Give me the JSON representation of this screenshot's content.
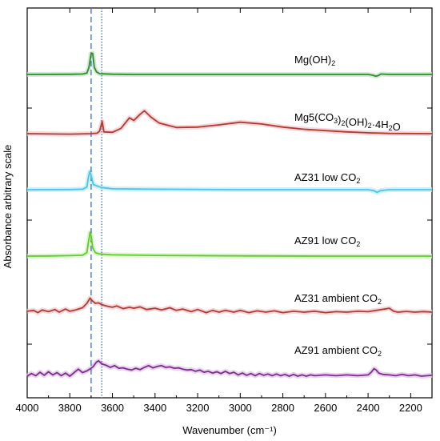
{
  "chart_data": {
    "type": "line",
    "xlabel": "Wavenumber (cm⁻¹)",
    "ylabel": "Absorbance arbitrary scale",
    "xlim": [
      4000,
      2100
    ],
    "x_ticks": [
      4000,
      3800,
      3600,
      3400,
      3200,
      3000,
      2800,
      2600,
      2400,
      2200
    ],
    "x_tick_labels": [
      "4000",
      "3800",
      "3600",
      "3400",
      "3200",
      "3000",
      "2800",
      "2600",
      "2400",
      "2200"
    ],
    "reference_lines": [
      {
        "x": 3700,
        "style": "dashed",
        "color": "#2f6fd6"
      },
      {
        "x": 3650,
        "style": "dotted",
        "color": "#2f6fd6"
      }
    ],
    "series": [
      {
        "label_parts": [
          [
            "Mg(OH)",
            "n"
          ],
          [
            "2",
            "sub"
          ]
        ],
        "color": "#2e8b2e",
        "band_color": "#c6e2c6",
        "label_x": 3290,
        "label_y": 1.35,
        "points": [
          [
            4000,
            0
          ],
          [
            3800,
            0.02
          ],
          [
            3740,
            0.05
          ],
          [
            3720,
            0.15
          ],
          [
            3710,
            0.8
          ],
          [
            3700,
            2.35
          ],
          [
            3693,
            2.4
          ],
          [
            3685,
            0.8
          ],
          [
            3675,
            0.3
          ],
          [
            3660,
            0.08
          ],
          [
            3600,
            0.03
          ],
          [
            3500,
            0
          ],
          [
            3200,
            0
          ],
          [
            2800,
            0
          ],
          [
            2400,
            0
          ],
          [
            2380,
            -0.08
          ],
          [
            2362,
            -0.2
          ],
          [
            2350,
            -0.1
          ],
          [
            2340,
            0.05
          ],
          [
            2300,
            0
          ],
          [
            2100,
            0
          ]
        ]
      },
      {
        "label_parts": [
          [
            "Mg5(CO",
            "n"
          ],
          [
            "3",
            "sub"
          ],
          [
            ")",
            "n"
          ],
          [
            "2",
            "sub"
          ],
          [
            "(OH)",
            "n"
          ],
          [
            "2",
            "sub"
          ],
          [
            "·4H",
            "n"
          ],
          [
            "2",
            "sub"
          ],
          [
            "O",
            "n"
          ]
        ],
        "color": "#b03a2e",
        "band_color": "#f2c9d0",
        "label_x": 3290,
        "label_y": 1.65,
        "points": [
          [
            4000,
            0
          ],
          [
            3800,
            -0.05
          ],
          [
            3700,
            0
          ],
          [
            3672,
            0.05
          ],
          [
            3660,
            0.3
          ],
          [
            3648,
            1.4
          ],
          [
            3640,
            0.2
          ],
          [
            3600,
            0.15
          ],
          [
            3560,
            0.6
          ],
          [
            3520,
            1.8
          ],
          [
            3500,
            1.5
          ],
          [
            3470,
            2.2
          ],
          [
            3450,
            2.6
          ],
          [
            3420,
            1.9
          ],
          [
            3380,
            1.2
          ],
          [
            3300,
            0.7
          ],
          [
            3200,
            0.75
          ],
          [
            3100,
            1.0
          ],
          [
            3000,
            1.3
          ],
          [
            2900,
            1.1
          ],
          [
            2800,
            0.75
          ],
          [
            2700,
            0.5
          ],
          [
            2600,
            0.35
          ],
          [
            2500,
            0.2
          ],
          [
            2400,
            0.1
          ],
          [
            2300,
            0.03
          ],
          [
            2100,
            0
          ]
        ]
      },
      {
        "label_parts": [
          [
            "AZ31 low CO",
            "n"
          ],
          [
            "2",
            "sub"
          ]
        ],
        "color": "#4fc3e6",
        "band_color": "#b9ecf7",
        "label_x": 3290,
        "label_y": 0.85,
        "points": [
          [
            4000,
            0
          ],
          [
            3800,
            0.02
          ],
          [
            3740,
            0.05
          ],
          [
            3720,
            0.3
          ],
          [
            3712,
            1.5
          ],
          [
            3706,
            2.05
          ],
          [
            3700,
            1.6
          ],
          [
            3690,
            0.6
          ],
          [
            3670,
            0.4
          ],
          [
            3650,
            0.25
          ],
          [
            3600,
            0.1
          ],
          [
            3400,
            0.05
          ],
          [
            3000,
            0
          ],
          [
            2400,
            0
          ],
          [
            2375,
            -0.1
          ],
          [
            2358,
            -0.3
          ],
          [
            2340,
            -0.1
          ],
          [
            2300,
            0
          ],
          [
            2100,
            0
          ]
        ]
      },
      {
        "label_parts": [
          [
            "AZ91 low CO",
            "n"
          ],
          [
            "2",
            "sub"
          ]
        ],
        "color": "#5ccd2a",
        "band_color": "#d3f1c0",
        "label_x": 3290,
        "label_y": 0.9,
        "points": [
          [
            4000,
            0
          ],
          [
            3900,
            0.02
          ],
          [
            3800,
            0.05
          ],
          [
            3740,
            0.1
          ],
          [
            3720,
            0.4
          ],
          [
            3712,
            1.7
          ],
          [
            3705,
            2.7
          ],
          [
            3700,
            2.3
          ],
          [
            3692,
            0.9
          ],
          [
            3680,
            0.4
          ],
          [
            3660,
            0.25
          ],
          [
            3600,
            0.15
          ],
          [
            3400,
            0.08
          ],
          [
            3000,
            0.03
          ],
          [
            2600,
            0
          ],
          [
            2100,
            0
          ]
        ]
      },
      {
        "label_parts": [
          [
            "AZ31 ambient CO",
            "n"
          ],
          [
            "2",
            "sub"
          ]
        ],
        "color": "#b03a2e",
        "band_color": "#f2c9d0",
        "label_x": 3290,
        "label_y": 1.35,
        "points": [
          [
            4000,
            0.1
          ],
          [
            3970,
            0.2
          ],
          [
            3950,
            -0.05
          ],
          [
            3930,
            0.25
          ],
          [
            3900,
            0.05
          ],
          [
            3870,
            0.3
          ],
          [
            3850,
            0
          ],
          [
            3820,
            0.35
          ],
          [
            3800,
            0.1
          ],
          [
            3780,
            0.2
          ],
          [
            3760,
            0.35
          ],
          [
            3740,
            0.5
          ],
          [
            3720,
            1.0
          ],
          [
            3705,
            1.6
          ],
          [
            3695,
            1.3
          ],
          [
            3680,
            1.0
          ],
          [
            3665,
            1.05
          ],
          [
            3650,
            0.85
          ],
          [
            3620,
            0.65
          ],
          [
            3600,
            0.55
          ],
          [
            3580,
            0.7
          ],
          [
            3550,
            0.4
          ],
          [
            3520,
            0.55
          ],
          [
            3500,
            0.45
          ],
          [
            3470,
            0.6
          ],
          [
            3440,
            0.3
          ],
          [
            3400,
            0.45
          ],
          [
            3370,
            0.25
          ],
          [
            3330,
            0.5
          ],
          [
            3300,
            0.2
          ],
          [
            3270,
            0.35
          ],
          [
            3230,
            0.05
          ],
          [
            3200,
            0.3
          ],
          [
            3160,
            -0.05
          ],
          [
            3130,
            0.2
          ],
          [
            3100,
            0
          ],
          [
            3070,
            0.2
          ],
          [
            3030,
            0
          ],
          [
            3000,
            0.2
          ],
          [
            2960,
            -0.05
          ],
          [
            2920,
            0.15
          ],
          [
            2880,
            0
          ],
          [
            2840,
            0.15
          ],
          [
            2800,
            -0.05
          ],
          [
            2750,
            0.1
          ],
          [
            2700,
            0
          ],
          [
            2650,
            0.1
          ],
          [
            2600,
            -0.05
          ],
          [
            2550,
            0.05
          ],
          [
            2500,
            0
          ],
          [
            2450,
            0.1
          ],
          [
            2400,
            0.05
          ],
          [
            2350,
            0.25
          ],
          [
            2300,
            0.45
          ],
          [
            2280,
            0.1
          ],
          [
            2260,
            0
          ],
          [
            2220,
            0.08
          ],
          [
            2180,
            0
          ],
          [
            2140,
            0.06
          ],
          [
            2100,
            0
          ]
        ]
      },
      {
        "label_parts": [
          [
            "AZ91 ambient CO",
            "n"
          ],
          [
            "2",
            "sub"
          ]
        ],
        "color": "#7b2c8c",
        "band_color": "#e0c3e6",
        "label_x": 3290,
        "label_y": 1.75,
        "points": [
          [
            4000,
            0
          ],
          [
            3980,
            0.3
          ],
          [
            3960,
            0.05
          ],
          [
            3940,
            0.45
          ],
          [
            3920,
            0.1
          ],
          [
            3900,
            0.5
          ],
          [
            3880,
            0.15
          ],
          [
            3860,
            0.4
          ],
          [
            3840,
            0.05
          ],
          [
            3820,
            0.35
          ],
          [
            3800,
            0
          ],
          [
            3780,
            0.4
          ],
          [
            3760,
            0.8
          ],
          [
            3740,
            0.4
          ],
          [
            3720,
            0.6
          ],
          [
            3700,
            0.9
          ],
          [
            3690,
            1.1
          ],
          [
            3675,
            1.6
          ],
          [
            3665,
            1.75
          ],
          [
            3650,
            1.4
          ],
          [
            3630,
            1.25
          ],
          [
            3610,
            1.0
          ],
          [
            3590,
            1.2
          ],
          [
            3570,
            0.9
          ],
          [
            3550,
            0.95
          ],
          [
            3530,
            0.8
          ],
          [
            3510,
            0.7
          ],
          [
            3490,
            0.9
          ],
          [
            3470,
            0.75
          ],
          [
            3450,
            1.0
          ],
          [
            3430,
            1.2
          ],
          [
            3410,
            0.95
          ],
          [
            3390,
            1.1
          ],
          [
            3370,
            1.2
          ],
          [
            3350,
            1.0
          ],
          [
            3330,
            1.05
          ],
          [
            3310,
            0.9
          ],
          [
            3290,
            0.95
          ],
          [
            3270,
            0.8
          ],
          [
            3250,
            0.7
          ],
          [
            3230,
            0.75
          ],
          [
            3210,
            0.55
          ],
          [
            3190,
            0.7
          ],
          [
            3170,
            0.45
          ],
          [
            3150,
            0.55
          ],
          [
            3130,
            0.35
          ],
          [
            3110,
            0.5
          ],
          [
            3090,
            0.3
          ],
          [
            3070,
            0.55
          ],
          [
            3050,
            0.3
          ],
          [
            3030,
            0.45
          ],
          [
            3010,
            0.15
          ],
          [
            2990,
            0.35
          ],
          [
            2970,
            0.1
          ],
          [
            2950,
            0.3
          ],
          [
            2930,
            0.05
          ],
          [
            2910,
            0.3
          ],
          [
            2890,
            0.1
          ],
          [
            2870,
            0.25
          ],
          [
            2850,
            0.05
          ],
          [
            2830,
            0.25
          ],
          [
            2810,
            0.05
          ],
          [
            2790,
            0.2
          ],
          [
            2770,
            0
          ],
          [
            2750,
            0.2
          ],
          [
            2730,
            0
          ],
          [
            2710,
            0.15
          ],
          [
            2690,
            0
          ],
          [
            2670,
            0.15
          ],
          [
            2650,
            0.05
          ],
          [
            2600,
            0.15
          ],
          [
            2550,
            0.05
          ],
          [
            2500,
            0.15
          ],
          [
            2450,
            0.05
          ],
          [
            2400,
            0.15
          ],
          [
            2385,
            0.45
          ],
          [
            2372,
            0.85
          ],
          [
            2362,
            0.7
          ],
          [
            2350,
            0.35
          ],
          [
            2330,
            0.2
          ],
          [
            2300,
            0.15
          ],
          [
            2270,
            0.05
          ],
          [
            2240,
            0.2
          ],
          [
            2210,
            0.05
          ],
          [
            2180,
            0.15
          ],
          [
            2150,
            0
          ],
          [
            2100,
            0.1
          ]
        ]
      }
    ]
  }
}
